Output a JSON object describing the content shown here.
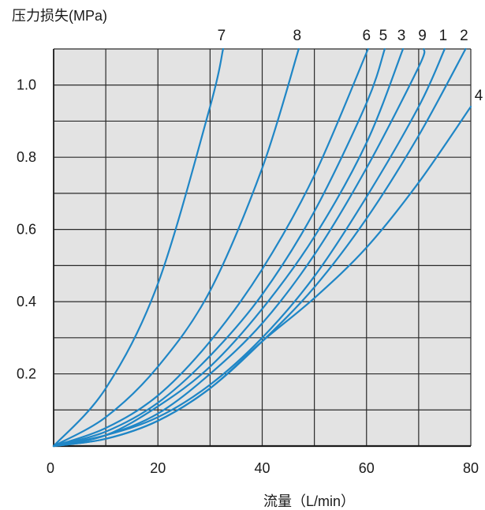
{
  "chart_data": {
    "type": "line",
    "title": "",
    "ylabel": "压力损失(MPa)",
    "xlabel": "流量（L/min）",
    "xlim": [
      0,
      80
    ],
    "ylim": [
      0,
      1.1
    ],
    "x_ticks": [
      0,
      20,
      40,
      60,
      80
    ],
    "x_tick_labels": [
      "0",
      "20",
      "40",
      "60",
      "80"
    ],
    "y_ticks": [
      0.2,
      0.4,
      0.6,
      0.8,
      1.0
    ],
    "y_tick_labels": [
      "0.2",
      "0.4",
      "0.6",
      "0.8",
      "1.0"
    ],
    "grid": true,
    "background_color": "#e3e3e3",
    "line_color": "#1f86c6",
    "series": [
      {
        "name": "7",
        "x": [
          0,
          10,
          20,
          30,
          32.5
        ],
        "y": [
          0,
          0.16,
          0.45,
          0.94,
          1.1
        ]
      },
      {
        "name": "8",
        "x": [
          0,
          10,
          20,
          30,
          40,
          47
        ],
        "y": [
          0,
          0.08,
          0.22,
          0.43,
          0.77,
          1.1
        ]
      },
      {
        "name": "6",
        "x": [
          0,
          10,
          20,
          30,
          40,
          50,
          60.3
        ],
        "y": [
          0,
          0.05,
          0.14,
          0.29,
          0.49,
          0.75,
          1.1
        ]
      },
      {
        "name": "5",
        "x": [
          0,
          10,
          20,
          30,
          40,
          50,
          60,
          63.5
        ],
        "y": [
          0,
          0.04,
          0.12,
          0.25,
          0.42,
          0.65,
          0.95,
          1.1
        ]
      },
      {
        "name": "3",
        "x": [
          0,
          10,
          20,
          30,
          40,
          50,
          60,
          67
        ],
        "y": [
          0,
          0.03,
          0.11,
          0.22,
          0.38,
          0.58,
          0.84,
          1.1
        ]
      },
      {
        "name": "9",
        "x": [
          0,
          10,
          20,
          30,
          40,
          50,
          60,
          70,
          71
        ],
        "y": [
          0,
          0.03,
          0.09,
          0.2,
          0.34,
          0.53,
          0.77,
          1.05,
          1.1
        ]
      },
      {
        "name": "1",
        "x": [
          0,
          10,
          20,
          30,
          40,
          50,
          60,
          70,
          75
        ],
        "y": [
          0,
          0.03,
          0.08,
          0.17,
          0.3,
          0.47,
          0.69,
          0.94,
          1.1
        ]
      },
      {
        "name": "2",
        "x": [
          0,
          10,
          20,
          30,
          40,
          50,
          60,
          70,
          79
        ],
        "y": [
          0,
          0.02,
          0.07,
          0.16,
          0.29,
          0.44,
          0.63,
          0.86,
          1.1
        ]
      },
      {
        "name": "4",
        "x": [
          0,
          10,
          20,
          30,
          40,
          50,
          60,
          70,
          80
        ],
        "y": [
          0,
          0.02,
          0.07,
          0.16,
          0.29,
          0.41,
          0.55,
          0.73,
          0.94
        ]
      }
    ]
  }
}
